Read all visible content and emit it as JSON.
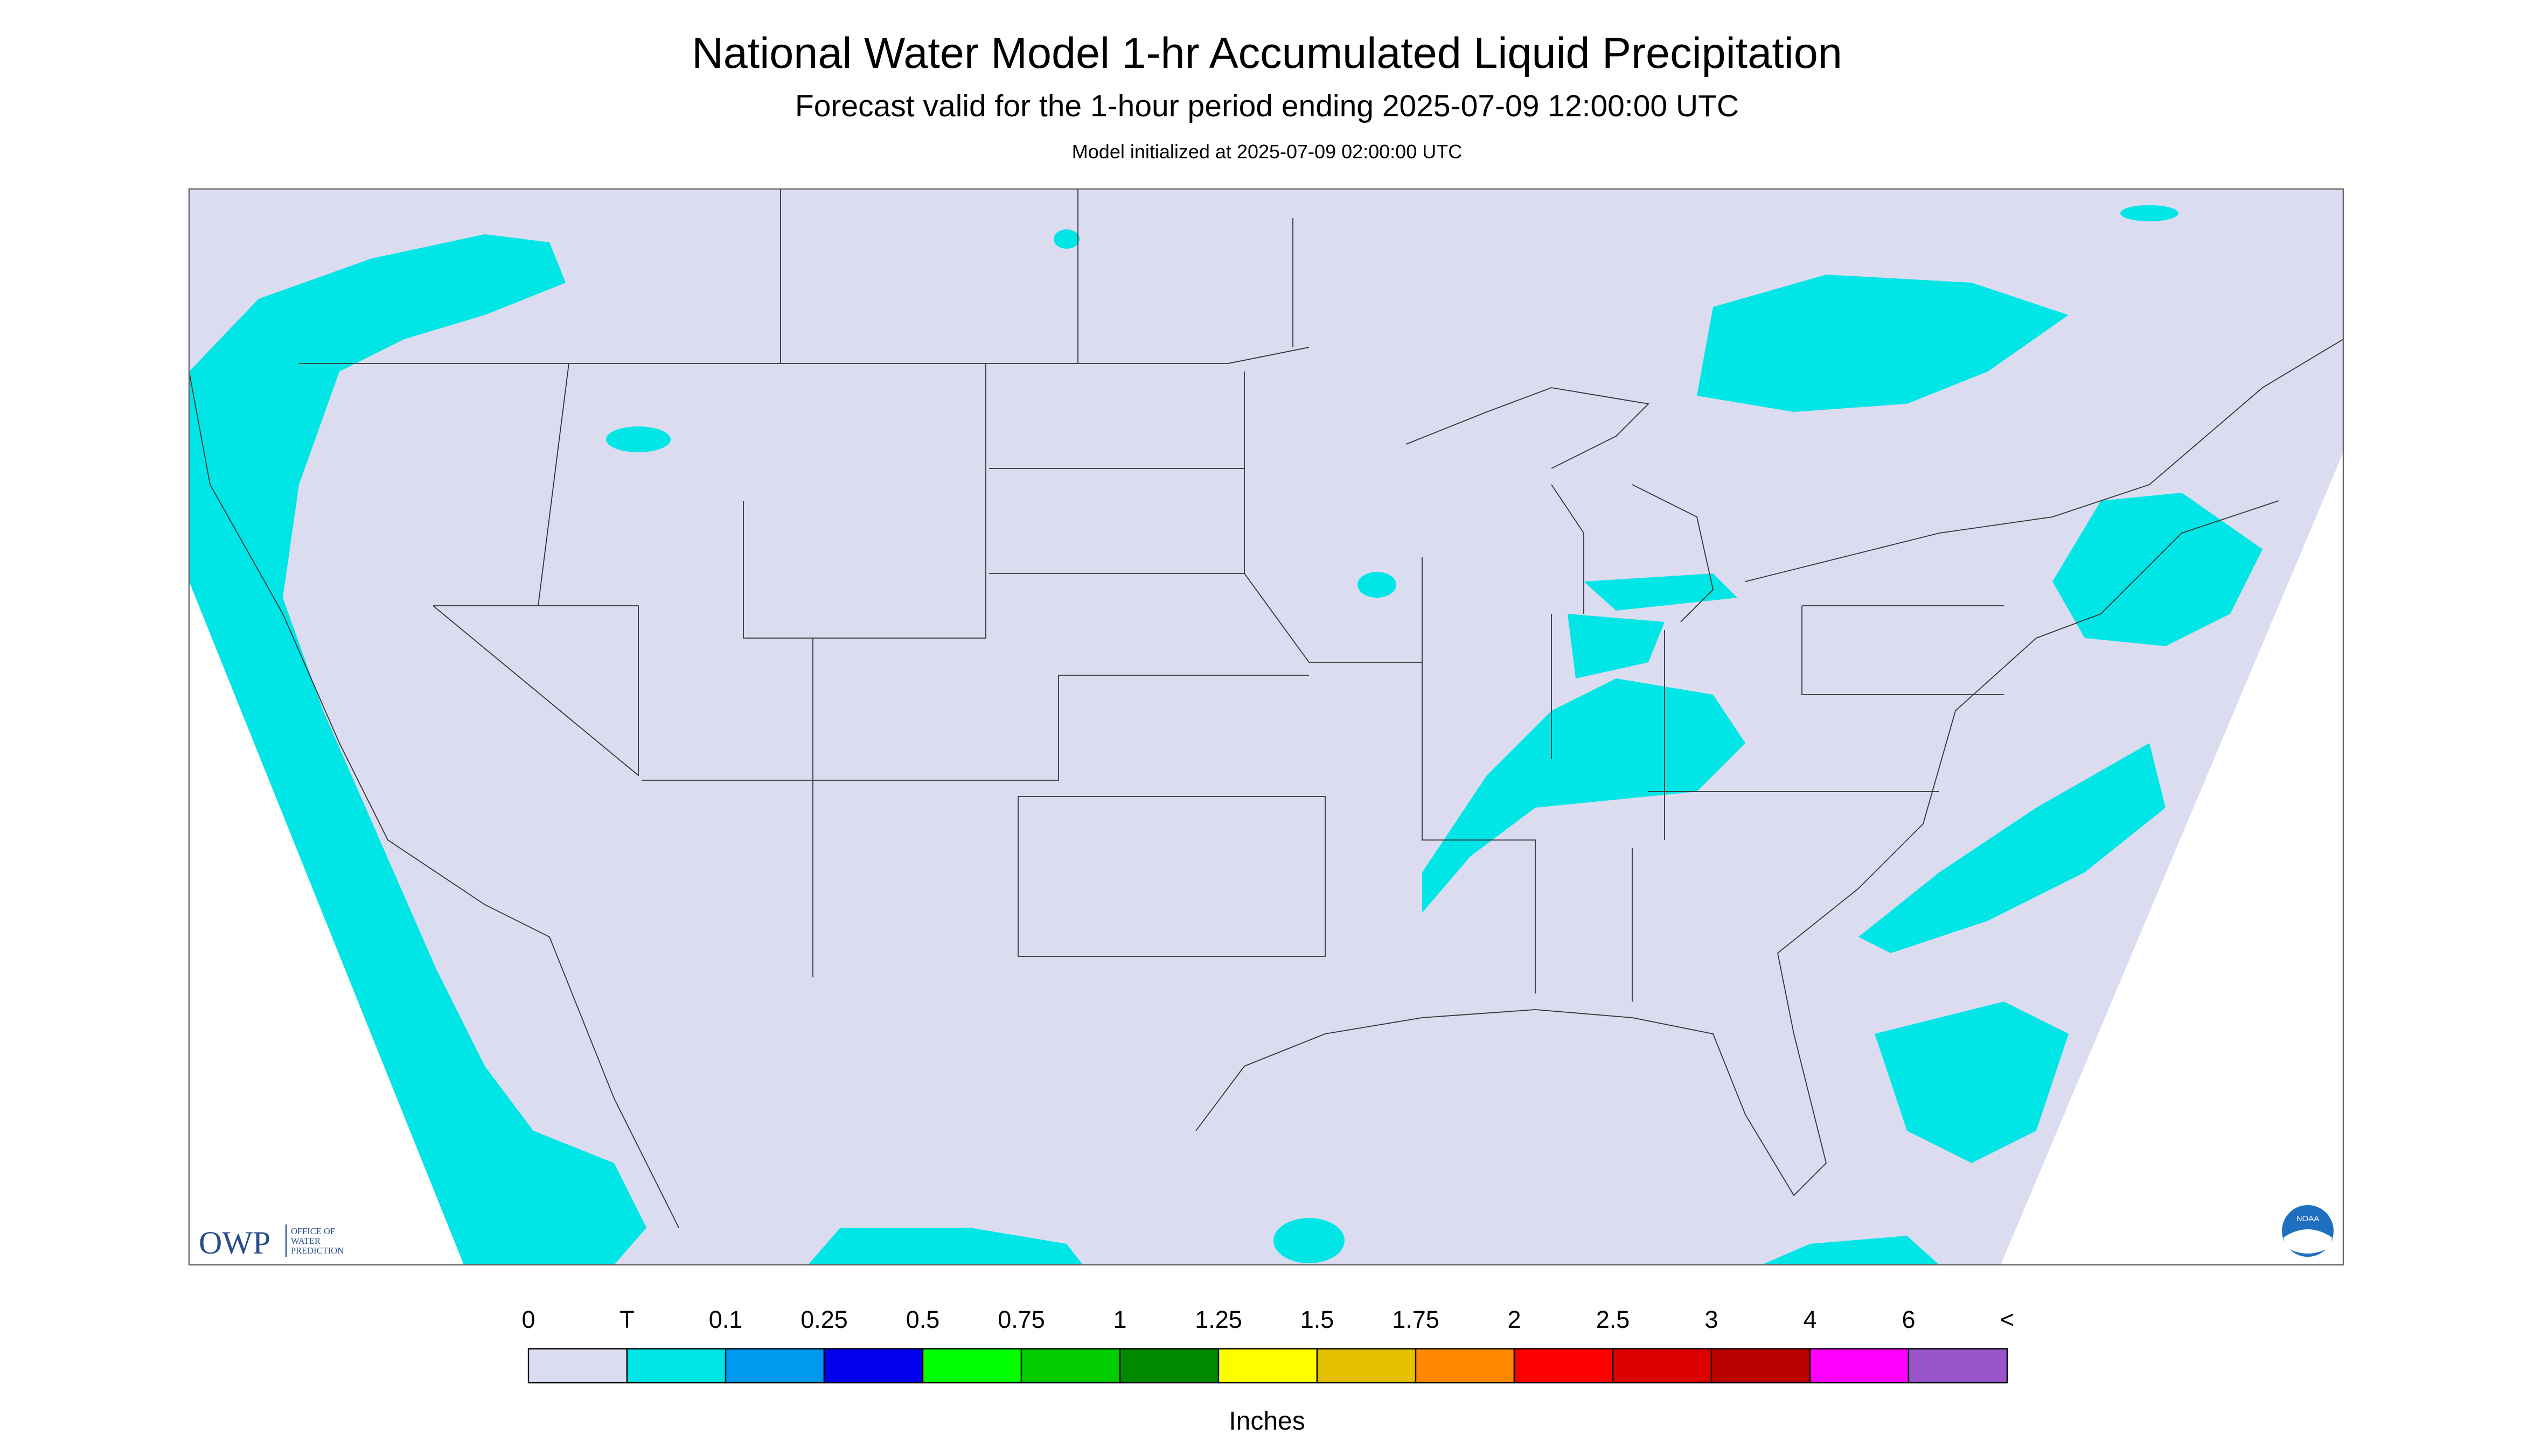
{
  "header": {
    "title": "National Water Model 1-hr Accumulated Liquid Precipitation",
    "subtitle": "Forecast valid for the 1-hour period ending 2025-07-09 12:00:00 UTC",
    "init": "Model initialized at 2025-07-09 02:00:00 UTC"
  },
  "logo": {
    "abbr": "OWP",
    "line1": "OFFICE OF",
    "line2": "WATER",
    "line3": "PREDICTION",
    "noaa": "NOAA"
  },
  "legend": {
    "labels": [
      "0",
      "T",
      "0.1",
      "0.25",
      "0.5",
      "0.75",
      "1",
      "1.25",
      "1.5",
      "1.75",
      "2",
      "2.5",
      "3",
      "4",
      "6",
      "<"
    ],
    "colors": [
      "#dcdcf0",
      "#00e5e5",
      "#0099ee",
      "#0000ee",
      "#00ff00",
      "#00cc00",
      "#008800",
      "#ffff00",
      "#e5c000",
      "#ff8800",
      "#ff0000",
      "#dd0000",
      "#bb0000",
      "#ff00ff",
      "#9955cc"
    ],
    "unit": "Inches"
  }
}
